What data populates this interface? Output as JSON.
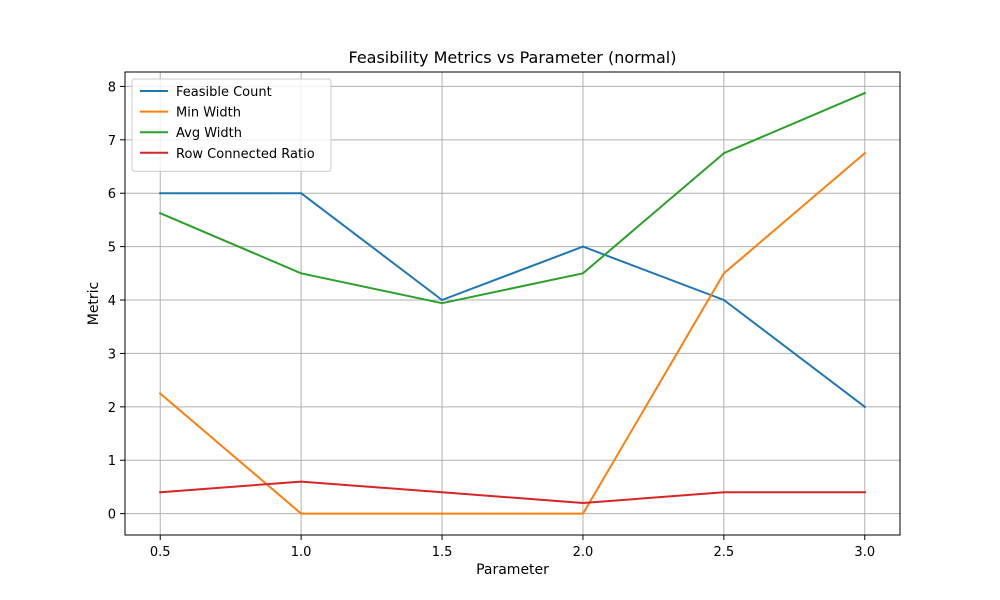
{
  "chart_data": {
    "type": "line",
    "title": "Feasibility Metrics vs Parameter (normal)",
    "xlabel": "Parameter",
    "ylabel": "Metric",
    "x": [
      0.5,
      1.0,
      1.5,
      2.0,
      2.5,
      3.0
    ],
    "x_tick_labels": [
      "0.5",
      "1.0",
      "1.5",
      "2.0",
      "2.5",
      "3.0"
    ],
    "y_ticks": [
      0,
      1,
      2,
      3,
      4,
      5,
      6,
      7,
      8
    ],
    "y_tick_labels": [
      "0",
      "1",
      "2",
      "3",
      "4",
      "5",
      "6",
      "7",
      "8"
    ],
    "xlim": [
      0.375,
      3.125
    ],
    "ylim": [
      -0.4,
      8.27
    ],
    "grid": true,
    "legend_position": "top-left",
    "series": [
      {
        "name": "Feasible Count",
        "color": "#1f77b4",
        "values": [
          6,
          6,
          4,
          5,
          4,
          2
        ]
      },
      {
        "name": "Min Width",
        "color": "#ff7f0e",
        "values": [
          2.25,
          0,
          0,
          0,
          4.5,
          6.75
        ]
      },
      {
        "name": "Avg Width",
        "color": "#2ca02c",
        "values": [
          5.625,
          4.5,
          3.94,
          4.5,
          6.75,
          7.875
        ]
      },
      {
        "name": "Row Connected Ratio",
        "color": "#d62728",
        "values": [
          0.4,
          0.6,
          0.4,
          0.2,
          0.4,
          0.4
        ]
      }
    ]
  }
}
